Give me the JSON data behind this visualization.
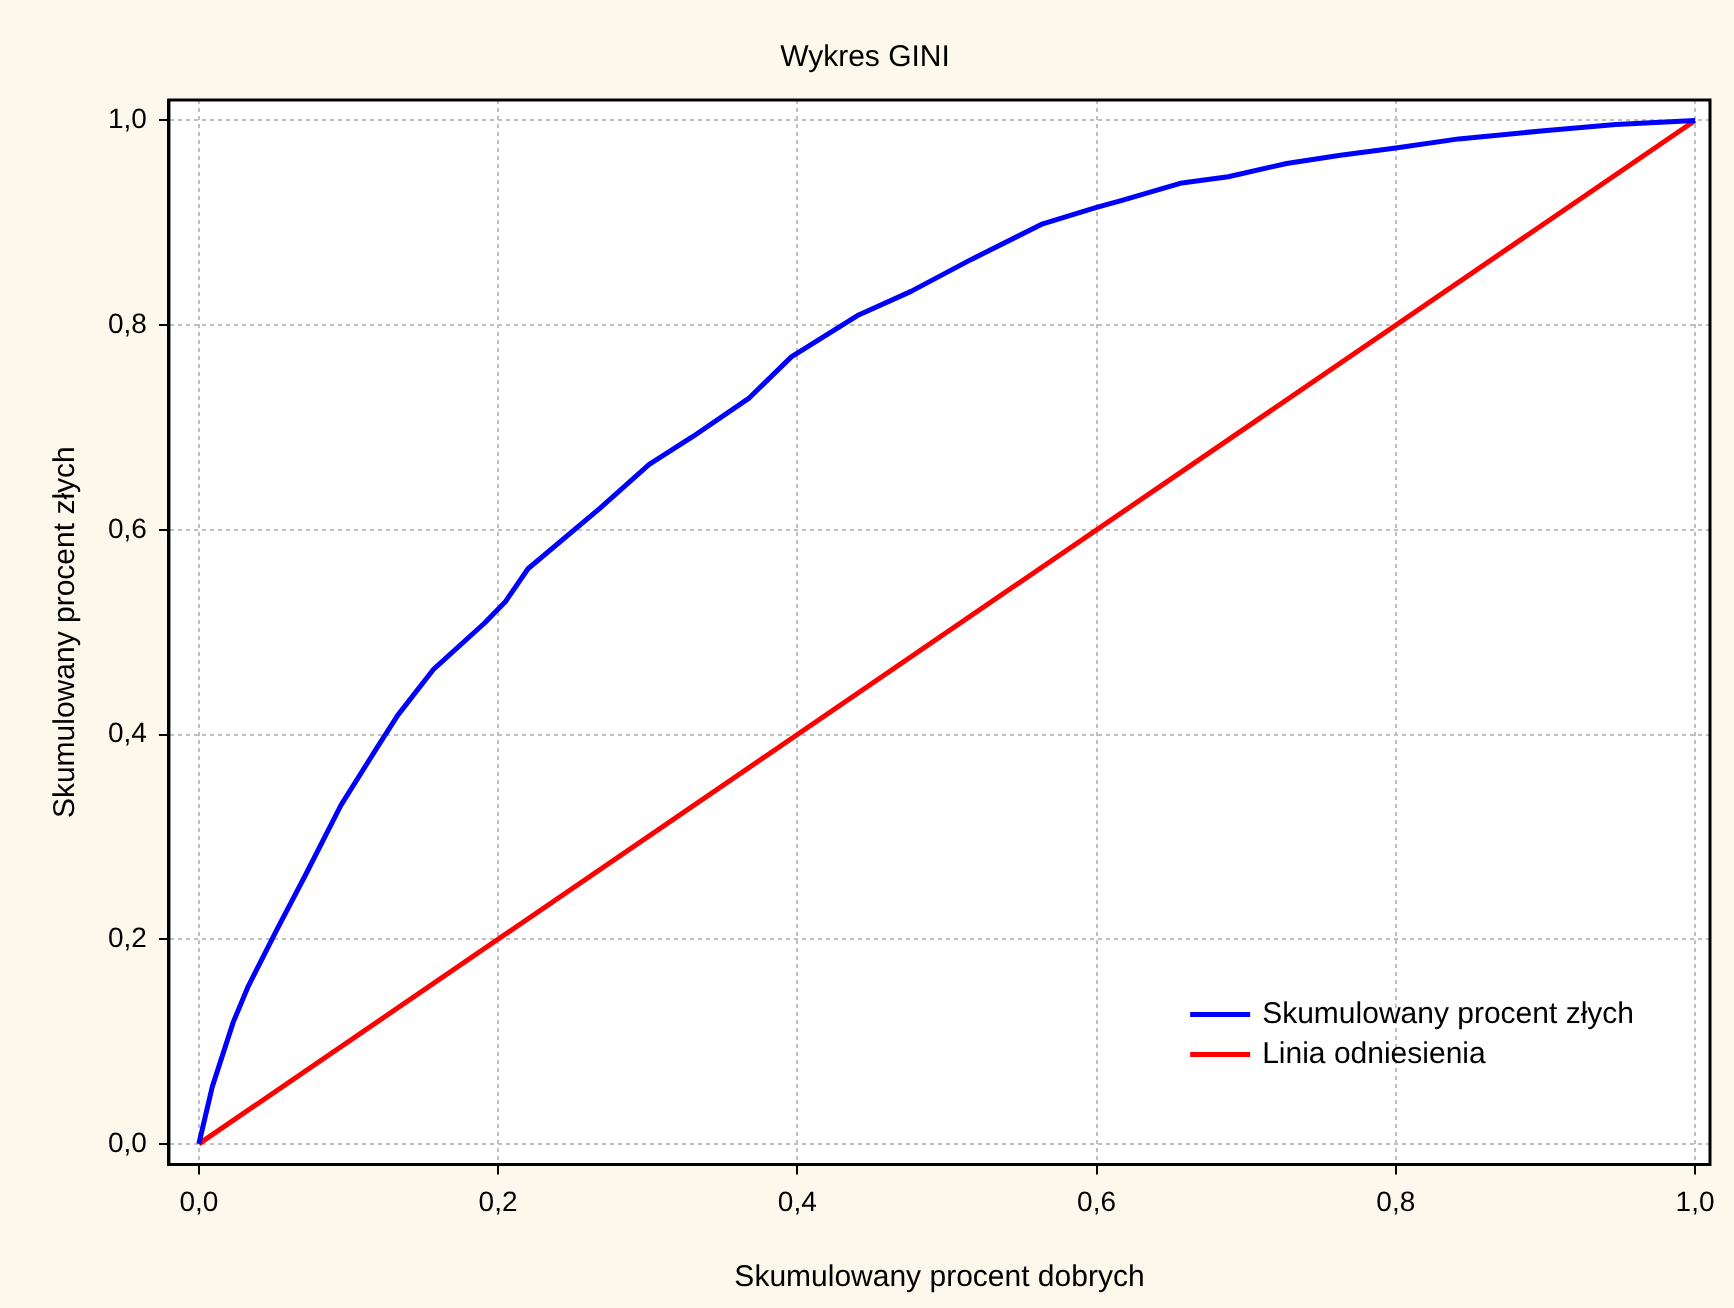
{
  "chart_data": {
    "type": "line",
    "title": "Wykres GINI",
    "xlabel": "Skumulowany procent dobrych",
    "ylabel": "Skumulowany procent złych",
    "xlim": [
      -0.02,
      1.01
    ],
    "ylim": [
      -0.02,
      1.02
    ],
    "xticks": [
      {
        "value": 0,
        "label": "0,0"
      },
      {
        "value": 0.2,
        "label": "0,2"
      },
      {
        "value": 0.4,
        "label": "0,4"
      },
      {
        "value": 0.6,
        "label": "0,6"
      },
      {
        "value": 0.8,
        "label": "0,8"
      },
      {
        "value": 1,
        "label": "1,0"
      }
    ],
    "yticks": [
      {
        "value": 0,
        "label": "0,0"
      },
      {
        "value": 0.2,
        "label": "0,2"
      },
      {
        "value": 0.4,
        "label": "0,4"
      },
      {
        "value": 0.6,
        "label": "0,6"
      },
      {
        "value": 0.8,
        "label": "0,8"
      },
      {
        "value": 1,
        "label": "1,0"
      }
    ],
    "grid": true,
    "legend": "bottom right",
    "marker": "none",
    "line_style": "solid",
    "series": [
      {
        "name": "Skumulowany procent złych",
        "color": "#0000ff",
        "x": [
          0,
          0.009,
          0.023,
          0.033,
          0.052,
          0.071,
          0.095,
          0.119,
          0.133,
          0.157,
          0.191,
          0.205,
          0.22,
          0.268,
          0.301,
          0.33,
          0.368,
          0.396,
          0.441,
          0.476,
          0.516,
          0.564,
          0.6,
          0.617,
          0.657,
          0.688,
          0.727,
          0.763,
          0.8,
          0.842,
          0.899,
          0.947,
          1
        ],
        "values": [
          0,
          0.056,
          0.119,
          0.154,
          0.209,
          0.262,
          0.331,
          0.387,
          0.419,
          0.464,
          0.509,
          0.53,
          0.562,
          0.621,
          0.664,
          0.691,
          0.729,
          0.769,
          0.81,
          0.833,
          0.864,
          0.899,
          0.915,
          0.922,
          0.939,
          0.945,
          0.958,
          0.966,
          0.973,
          0.982,
          0.99,
          0.996,
          1
        ]
      },
      {
        "name": "Linia odniesienia",
        "color": "#ff0000",
        "x": [
          0,
          1
        ],
        "values": [
          0,
          1
        ]
      }
    ]
  }
}
